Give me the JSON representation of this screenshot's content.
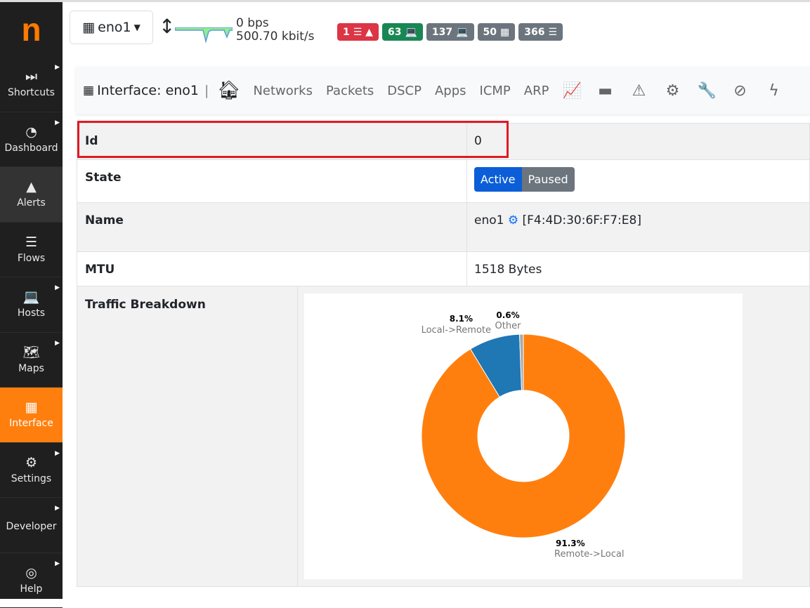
{
  "sidebar": {
    "logo": "n",
    "items": [
      {
        "label": "Shortcuts",
        "icon": "forward-icon",
        "glyph": "⏭",
        "submenu": true
      },
      {
        "label": "Dashboard",
        "icon": "gauge-icon",
        "glyph": "◔",
        "submenu": true
      },
      {
        "label": "Alerts",
        "icon": "warning-icon",
        "glyph": "▲",
        "submenu": false
      },
      {
        "label": "Flows",
        "icon": "bars-icon",
        "glyph": "☰",
        "submenu": false
      },
      {
        "label": "Hosts",
        "icon": "laptop-icon",
        "glyph": "💻",
        "submenu": true
      },
      {
        "label": "Maps",
        "icon": "map-icon",
        "glyph": "🗺",
        "submenu": true
      },
      {
        "label": "Interface",
        "icon": "ethernet-icon",
        "glyph": "▦",
        "submenu": false
      },
      {
        "label": "Settings",
        "icon": "gear-icon",
        "glyph": "⚙",
        "submenu": true
      },
      {
        "label": "Developer",
        "icon": "code-icon",
        "glyph": "</>",
        "submenu": true
      },
      {
        "label": "Help",
        "icon": "lifering-icon",
        "glyph": "◎",
        "submenu": true
      }
    ]
  },
  "topbar": {
    "interface": "eno1",
    "rate_up": "0 bps",
    "rate_down": "500.70 kbit/s",
    "badges": [
      {
        "count": "1",
        "glyph": "☰ ▲",
        "color": "#dc3545",
        "name": "alerts-badge"
      },
      {
        "count": "63",
        "glyph": "💻",
        "color": "#198754",
        "name": "local-hosts-badge"
      },
      {
        "count": "137",
        "glyph": "💻",
        "color": "#6c757d",
        "name": "hosts-badge"
      },
      {
        "count": "50",
        "glyph": "▦",
        "color": "#6c757d",
        "name": "devices-badge"
      },
      {
        "count": "366",
        "glyph": "☰",
        "color": "#6c757d",
        "name": "flows-badge"
      }
    ]
  },
  "nav": {
    "title": "Interface: eno1",
    "links": [
      "Networks",
      "Packets",
      "DSCP",
      "Apps",
      "ICMP",
      "ARP"
    ],
    "icons": [
      {
        "name": "area-chart-icon",
        "glyph": "📈"
      },
      {
        "name": "hdd-icon",
        "glyph": "▬"
      },
      {
        "name": "warning-icon",
        "glyph": "⚠"
      },
      {
        "name": "gear-icon",
        "glyph": "⚙"
      },
      {
        "name": "wrench-icon",
        "glyph": "🔧"
      },
      {
        "name": "user-slash-icon",
        "glyph": "⊘"
      },
      {
        "name": "bolt-icon",
        "glyph": "ϟ"
      }
    ]
  },
  "details": {
    "id_label": "Id",
    "id_value": "0",
    "state_label": "State",
    "state_active": "Active",
    "state_paused": "Paused",
    "name_label": "Name",
    "name_value": "eno1",
    "mac": "[F4:4D:30:6F:F7:E8]",
    "mtu_label": "MTU",
    "mtu_value": "1518 Bytes",
    "traffic_label": "Traffic Breakdown"
  },
  "chart_data": {
    "type": "pie",
    "donut": true,
    "slices": [
      {
        "label": "Remote->Local",
        "value": 91.3,
        "pct": "91.3%",
        "color": "#ff7f0e"
      },
      {
        "label": "Local->Remote",
        "value": 8.1,
        "pct": "8.1%",
        "color": "#1f77b4"
      },
      {
        "label": "Other",
        "value": 0.6,
        "pct": "0.6%",
        "color": "#aaaaaa"
      }
    ]
  }
}
